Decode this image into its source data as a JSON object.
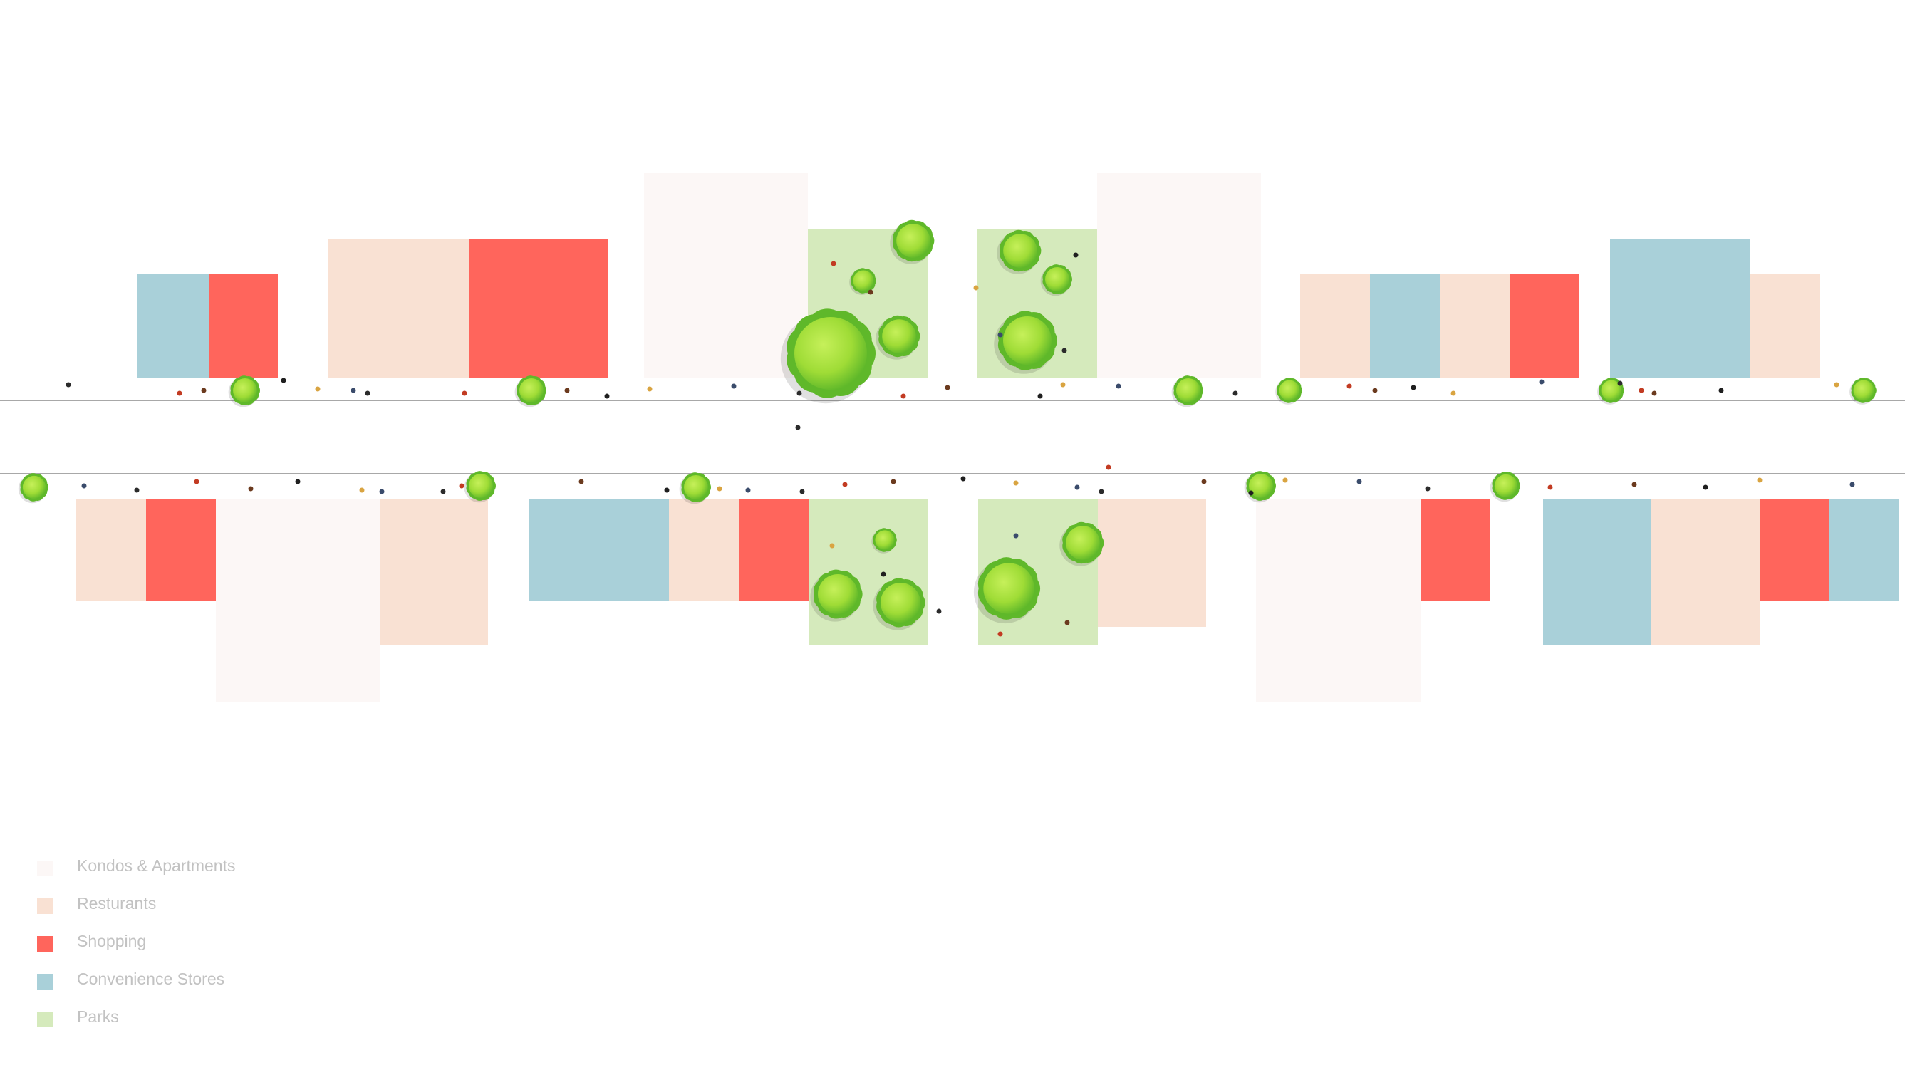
{
  "colors": {
    "kondos": "#fcf7f6",
    "restaurants": "#f9e1d3",
    "shopping": "#ff655c",
    "convenience": "#a9d0d9",
    "parks": "#d5eabc",
    "road_line": "#a8a8a8",
    "tree_light": "#a7e23a",
    "tree_dark": "#5fb82a"
  },
  "legend": [
    {
      "key": "kondos",
      "label": "Kondos & Apartments",
      "icon": "kondos-swatch"
    },
    {
      "key": "restaurants",
      "label": "Resturants",
      "icon": "restaurant-swatch"
    },
    {
      "key": "shopping",
      "label": "Shopping",
      "icon": "shopping-swatch"
    },
    {
      "key": "convenience",
      "label": "Convenience Stores",
      "icon": "convenience-swatch"
    },
    {
      "key": "parks",
      "label": "Parks",
      "icon": "park-swatch"
    }
  ]
}
